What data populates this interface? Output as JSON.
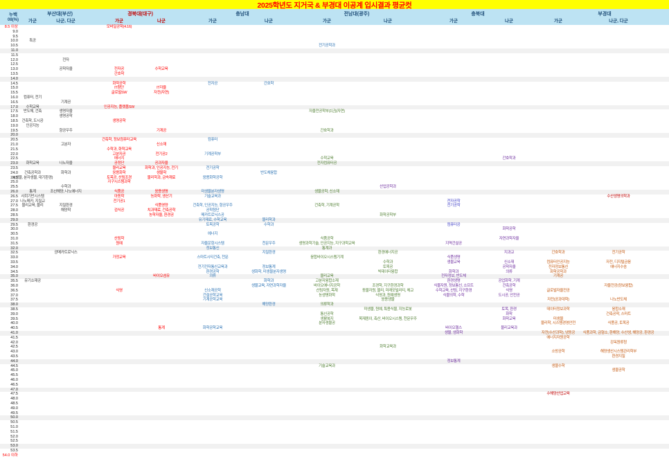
{
  "title": "2025학년도 지거국 & 부경대 이공계 입시결과 평균컷",
  "corner": {
    "top": "누백",
    "bottom": "08(%)"
  },
  "colors": {
    "pusan": "#3F3F3F",
    "knu": "#FF0000",
    "cnu": "#2E74B5",
    "jnu": "#538135",
    "jnu_pu": "#7030A0",
    "cb": "#7030A0",
    "cb_bl": "#4343C9",
    "pknu": "#C55A11",
    "pknu_red": "#C00000",
    "header_navy": "#1F4E79",
    "header_red": "#C00000",
    "label": "#1A1A1A",
    "label_red": "#FF0000",
    "title_text": "#FF0000",
    "title_bg": "#FFFF00",
    "header_bg": "#BDE3F3",
    "band": "#F1F1F1"
  },
  "universities": [
    {
      "id": "pusan",
      "label": "부산대(부산)",
      "hcolor": "header_navy",
      "groups": [
        {
          "id": "pusan_ga",
          "label": "가군"
        },
        {
          "id": "pusan_na",
          "label": "나군, 다군"
        }
      ]
    },
    {
      "id": "knu",
      "label": "경북대(대구)",
      "hcolor": "header_red",
      "groups": [
        {
          "id": "knu_ga",
          "label": "가군"
        },
        {
          "id": "knu_na",
          "label": "나군"
        }
      ]
    },
    {
      "id": "cnu",
      "label": "충남대",
      "hcolor": "header_navy",
      "groups": [
        {
          "id": "cnu_ga",
          "label": "가군"
        },
        {
          "id": "cnu_na",
          "label": "나군"
        }
      ]
    },
    {
      "id": "jnu",
      "label": "전남대(광주)",
      "hcolor": "header_navy",
      "groups": [
        {
          "id": "jnu_ga",
          "label": "가군"
        },
        {
          "id": "jnu_na",
          "label": "나군"
        }
      ]
    },
    {
      "id": "cb",
      "label": "충북대",
      "hcolor": "header_navy",
      "groups": [
        {
          "id": "cb_ga",
          "label": "가군"
        },
        {
          "id": "cb_na",
          "label": "나군"
        }
      ]
    },
    {
      "id": "pknu",
      "label": "부경대",
      "hcolor": "header_navy",
      "groups": [
        {
          "id": "pknu_ga",
          "label": "가군"
        },
        {
          "id": "pknu_na",
          "label": "나군, 다군"
        }
      ]
    }
  ],
  "rows": [
    {
      "p": "8.5 이상",
      "hot": true,
      "cells": {
        "knu_ga": "모바일공학(4.16)"
      }
    },
    {
      "p": "9.0"
    },
    {
      "p": "9.5"
    },
    {
      "p": "10.0",
      "cells": {
        "pusan_ga": "특공"
      }
    },
    {
      "p": "10.5",
      "cells": {
        "jnu_ga": {
          "t": "전기공학과",
          "c": "cnu"
        }
      }
    },
    {
      "p": "11.0"
    },
    {
      "p": "11.5"
    },
    {
      "p": "12.0",
      "cells": {
        "pusan_na": "전자"
      }
    },
    {
      "p": "12.5"
    },
    {
      "p": "13.0",
      "cells": {
        "pusan_na": "공학자율",
        "knu_ga": "전자공",
        "knu_na": "수학교육"
      }
    },
    {
      "p": "13.5",
      "cells": {
        "knu_ga": "간호학"
      }
    },
    {
      "p": "14.0"
    },
    {
      "p": "14.5",
      "cells": {
        "knu_ga": "화학공학",
        "cnu_ga": "전자공",
        "cnu_na": "간호학"
      }
    },
    {
      "p": "15.0",
      "cells": {
        "knu_ga": "IT첨단",
        "knu_na": "IT자율"
      }
    },
    {
      "p": "15.5",
      "cells": {
        "knu_ga": "글로벌SW",
        "knu_na": "자전(자연)"
      }
    },
    {
      "p": "16.0",
      "cells": {
        "pusan_ga": "컴퓨터, 전기"
      }
    },
    {
      "p": "16.5",
      "cells": {
        "pusan_na": "기계공"
      }
    },
    {
      "p": "17.0",
      "cells": {
        "pusan_ga": "수학교육",
        "knu_ga": "인공지능, 플랫폼SW"
      }
    },
    {
      "p": "17.5",
      "cells": {
        "pusan_ga": "반도체, 건축",
        "pusan_na": "생명자율",
        "jnu_ga": "자율전공학부(1년)(자연)"
      }
    },
    {
      "p": "18.0",
      "cells": {
        "pusan_na": "생명공학"
      }
    },
    {
      "p": "18.5",
      "cells": {
        "pusan_ga": "건축학, 도시공",
        "knu_ga": "생명공학"
      }
    },
    {
      "p": "19.0",
      "cells": {
        "pusan_ga": "인공지능"
      }
    },
    {
      "p": "19.5",
      "cells": {
        "pusan_na": "항공우주",
        "knu_na": "기계공",
        "jnu_ga": "간호학과"
      }
    },
    {
      "p": "20.0"
    },
    {
      "p": "20.5",
      "cells": {
        "knu_ga": "건축학, 정보컴퓨터교육",
        "cnu_ga": "컴퓨터"
      }
    },
    {
      "p": "21.0",
      "cells": {
        "pusan_na": "고분자",
        "knu_na": "신소재"
      }
    },
    {
      "p": "21.5",
      "cells": {
        "knu_ga": "수학과, 화학교육"
      }
    },
    {
      "p": "22.0",
      "cells": {
        "knu_ga": "고분자공",
        "knu_na": "전기공2",
        "cnu_ga": "기계공학부"
      }
    },
    {
      "p": "22.5",
      "cells": {
        "knu_ga": "에너지",
        "jnu_ga": "수학교육",
        "cb_na": "간호학과"
      }
    },
    {
      "p": "23.0",
      "cells": {
        "pusan_ga": "화학교육",
        "pusan_na": "나노자율",
        "knu_ga": "공정단",
        "knu_na": "공과자율",
        "jnu_ga": "전자컴퓨터공"
      }
    },
    {
      "p": "23.5",
      "cells": {
        "knu_ga": "물리교육",
        "knu_na": "화학과, 인공지능, 전기",
        "cnu_ga": "전기공학"
      }
    },
    {
      "p": "24.0",
      "cells": {
        "pusan_ga": "건축공학과",
        "pusan_na": "화학과",
        "knu_ga": "응용화학",
        "knu_na": "생물학",
        "cnu_na": "반도체융합"
      }
    },
    {
      "p": "24.5",
      "cells": {
        "pusan_ga": "3(생물, 분자생물, 대기환경)",
        "knu_ga": "토목공, 산림조경",
        "knu_na": "물리학과, 금속재료",
        "cnu_ga": "응용화학공학"
      }
    },
    {
      "p": "25.0",
      "cells": {
        "knu_ga": "지구시스템과학"
      }
    },
    {
      "p": "25.5",
      "cells": {
        "pusan_na": "수학과",
        "jnu_na": {
          "t": "산업공학과",
          "c": "jnu_pu"
        }
      }
    },
    {
      "p": "26.0",
      "cells": {
        "pusan_ga": "통계",
        "pusan_na": "조선해양, 나노에너지",
        "knu_ga": "식품공",
        "knu_na": "응용생명",
        "cnu_ga": "미생물분자생명",
        "jnu_ga": "생물공학, 신소재"
      }
    },
    {
      "p": "26.5",
      "cells": {
        "pusan_ga": "사회기반시스템",
        "knu_ga": "아동학",
        "knu_na": "농화학, 생산기",
        "cnu_ga": "기술교육과",
        "pknu_na": {
          "t": "수산생명의학과",
          "c": "pknu_red"
        }
      }
    },
    {
      "p": "27.0",
      "cells": {
        "pusan_ga": "나노메카, 지질교",
        "knu_ga": "전기공1",
        "cb_ga": {
          "t": "전자공학",
          "c": "cb_bl"
        }
      }
    },
    {
      "p": "27.5",
      "cells": {
        "pusan_ga": "물리교육, 물리",
        "pusan_na": "지질환경",
        "knu_na": "식품영양",
        "cnu_ga": "건축학, 인공지능, 항공우주",
        "jnu_ga": "건축학, 기계공학",
        "cb_ga": {
          "t": "전기공학",
          "c": "cb_bl"
        }
      }
    },
    {
      "p": "28.0",
      "cells": {
        "pusan_na": "해양학",
        "knu_ga": "검식공",
        "knu_na": "치과재료, 건축공학",
        "cnu_ga": "공학첨단"
      }
    },
    {
      "p": "28.5",
      "cells": {
        "knu_na": "농학자율, 환경공",
        "cnu_ga": "메카트로닉스공",
        "jnu_na": "화학공학부"
      }
    },
    {
      "p": "29.0",
      "cells": {
        "cnu_ga": "유기재료, 수학교육",
        "cnu_na": "물리학과"
      }
    },
    {
      "p": "29.5",
      "cells": {
        "pusan_ga": "환경공",
        "cnu_ga": "토목공학",
        "cnu_na": "수학과",
        "cb_ga": {
          "t": "컴퓨터공",
          "c": "cb_bl"
        }
      }
    },
    {
      "p": "30.0",
      "cells": {
        "cb_na": "화학공학"
      }
    },
    {
      "p": "30.5",
      "cells": {
        "cnu_ga": "에너지"
      }
    },
    {
      "p": "31.0",
      "cells": {
        "knu_ga": "산림학",
        "jnu_ga": "식품공학",
        "cb_na": "자연과학자율"
      }
    },
    {
      "p": "31.5",
      "cells": {
        "knu_ga": "원예",
        "cnu_ga": "자율운항시스템",
        "cnu_na": "천문우주",
        "jnu_ga": "생명과학기술, 인공지능, 지구과학교육",
        "cb_ga": "지역건설공"
      }
    },
    {
      "p": "32.0",
      "cells": {
        "cnu_ga": "정보통신",
        "jnu_ga": "통계과"
      }
    },
    {
      "p": "32.5",
      "cells": {
        "pusan_na": "광메카트로닉스",
        "cnu_na": "지질환경",
        "jnu_na": "환경에너지공",
        "cb_na": "지과교",
        "pknu_ga": "간호학과",
        "pknu_na": "전기공학"
      }
    },
    {
      "p": "33.0",
      "cells": {
        "knu_ga": "가정교육",
        "cnu_ga": "스마트시티건축, 천문",
        "jnu_ga": "융합바이오시스템기계",
        "cb_ga": "식품생명"
      }
    },
    {
      "p": "33.5",
      "cells": {
        "jnu_na": "수학과",
        "cb_ga": "생물교육",
        "cb_na": "신소재",
        "pknu_ga": "컴퓨터인공지능",
        "pknu_na": "자전, 디지털금융"
      }
    },
    {
      "p": "34.0",
      "cells": {
        "cnu_ga": "전기전자통신교육과",
        "cnu_na": "정보통계",
        "jnu_na": "토목공",
        "cb_na": "공학자율",
        "pknu_ga": "전자정보통신",
        "pknu_na": "에너지수송"
      }
    },
    {
      "p": "34.5",
      "cells": {
        "cnu_ga": "환경공학",
        "cnu_na": "생화학, 미생물분자생명",
        "jnu_na": "빅데이터융합",
        "cb_ga": "화학과",
        "cb_na": "의류",
        "pknu_ga": "화학공학과"
      }
    },
    {
      "p": "35.0",
      "cells": {
        "knu_na": "바이오섬유",
        "cnu_ga": "의류",
        "jnu_ga": "물리교육",
        "cb_ga": "전자정보, 반도체",
        "pknu_ga": "기계공"
      }
    },
    {
      "p": "35.5",
      "cells": {
        "pusan_ga": "유기소재공",
        "cnu_na": "화학과",
        "jnu_ga": "고분자융합소재",
        "cb_ga": "환경생명",
        "cb_na": "공업화학, 기계"
      }
    },
    {
      "p": "36.0",
      "cells": {
        "cnu_na": "생물교육, 자연과학자율",
        "jnu_ga": "바이오에너지공학",
        "jnu_na": "조경학, 지구환경과학",
        "cb_ga": "식물자원, 정보통신, 소프트",
        "cb_na": "건축공학",
        "pknu_na": "자율전공(정보융합)"
      }
    },
    {
      "p": "36.5",
      "cells": {
        "knu_ga": "식영",
        "cnu_ga": "신소재공학",
        "jnu_ga": "산림자원, 목재",
        "jnu_na": "동물자원, 물리, 미래모빌리티, 체교",
        "cb_ga": "수학교육, 산림, 지구환경",
        "cb_na": "식영",
        "pknu_ga": "글로벌자율전공"
      }
    },
    {
      "p": "37.0",
      "cells": {
        "cnu_ga": "건설공학교육",
        "jnu_ga": "농생명화학",
        "jnu_na": "식영과, 원예생명",
        "cb_ga": "식물의학, 수학",
        "cb_na": "도시공, 안전공"
      }
    },
    {
      "p": "37.5",
      "cells": {
        "cnu_ga": "기계공학교육",
        "jnu_na": "응용생물",
        "pknu_ga": "자전(공과대학)",
        "pknu_na": "나노반도체"
      }
    },
    {
      "p": "38.0",
      "cells": {
        "cnu_na": "해양환경",
        "jnu_ga": "의류학과"
      }
    },
    {
      "p": "38.5",
      "cells": {
        "jnu_na": "미생물, 원예, 특용식물, 지능로봇",
        "cb_na": "토목, 환경",
        "pknu_ga": "데이터정보과학",
        "pknu_na": "융합소재"
      }
    },
    {
      "p": "39.0",
      "cells": {
        "jnu_ga": "통신공학",
        "cb_na": "화학",
        "pknu_na": "건축공학, 스마트"
      }
    },
    {
      "p": "39.5",
      "cells": {
        "jnu_ga": "생활복지",
        "jnu_na": "목재종이, 축산, 바이오시스템, 천문우주",
        "cb_na": "화학교육",
        "pknu_ga": "미생물"
      }
    },
    {
      "p": "40.0",
      "cells": {
        "jnu_ga": "분자생물공",
        "pknu_ga": "물리학, 시스템경영안전",
        "pknu_na": "식품공, 토목공"
      }
    },
    {
      "p": "40.5",
      "cells": {
        "knu_na": "통계",
        "cnu_ga": "화학공학교육",
        "cb_ga": "바이오헬스",
        "cb_na": "물리교육과"
      }
    },
    {
      "p": "41.0",
      "cells": {
        "cb_ga": "생물, 생화학",
        "pknu_ga": "자전(수산과학), 냉동공",
        "pknu_na": "식품과학, 금형소, 환해양, 수산생, 해양공, 환경공"
      }
    },
    {
      "p": "41.5",
      "cells": {
        "pknu_ga": "에너지자원공학"
      }
    },
    {
      "p": "42.0",
      "cells": {
        "pknu_na": "강옥원류청"
      }
    },
    {
      "p": "42.5",
      "cells": {
        "jnu_na": "화학교육과"
      }
    },
    {
      "p": "43.0",
      "cells": {
        "pknu_ga": "소방공학",
        "pknu_na": "해양생산시스템관리학부"
      }
    },
    {
      "p": "43.5",
      "cells": {
        "pknu_na": "환경지질"
      }
    },
    {
      "p": "44.0",
      "cells": {
        "cb_ga": "정보통계"
      }
    },
    {
      "p": "44.5",
      "cells": {
        "jnu_ga": "기술교육과",
        "pknu_ga": "생물수학"
      }
    },
    {
      "p": "45.0",
      "cells": {
        "pknu_na": "생물공학"
      }
    },
    {
      "p": "45.5"
    },
    {
      "p": "46.0"
    },
    {
      "p": "46.5"
    },
    {
      "p": "47.0"
    },
    {
      "p": "47.5",
      "cells": {
        "pknu_ga": {
          "t": "수해양산업교육",
          "c": "pknu_red"
        }
      }
    },
    {
      "p": "48.0"
    },
    {
      "p": "48.5"
    },
    {
      "p": "49.0"
    },
    {
      "p": "49.5"
    },
    {
      "p": "50.0"
    },
    {
      "p": "50.5"
    },
    {
      "p": "51.0"
    },
    {
      "p": "51.5"
    },
    {
      "p": "52.0"
    },
    {
      "p": "52.5"
    },
    {
      "p": "53.0"
    },
    {
      "p": "53.5"
    },
    {
      "p": "54.0 이하",
      "hot": true
    }
  ]
}
